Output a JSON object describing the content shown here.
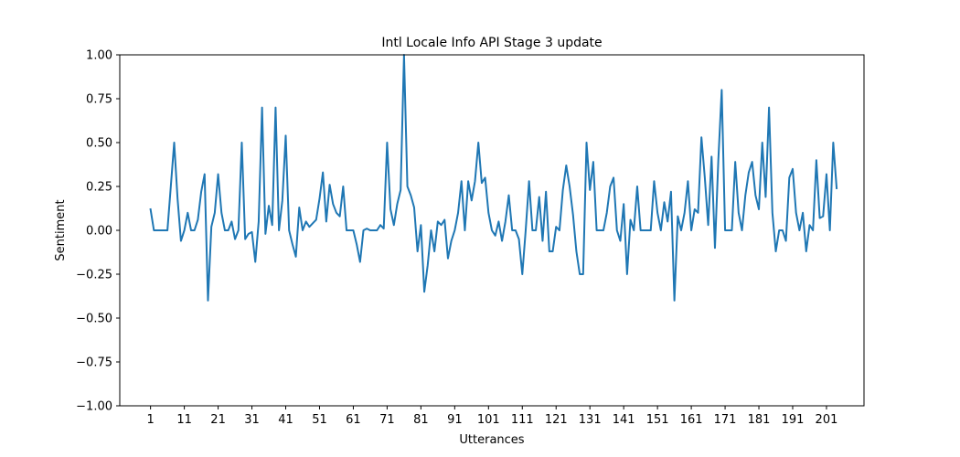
{
  "chart_data": {
    "type": "line",
    "title": "Intl Locale Info API Stage 3 update",
    "xlabel": "Utterances",
    "ylabel": "Sentiment",
    "xlim": [
      -8.1,
      212.1
    ],
    "ylim": [
      -1.0,
      1.0
    ],
    "x_ticks": [
      1,
      11,
      21,
      31,
      41,
      51,
      61,
      71,
      81,
      91,
      101,
      111,
      121,
      131,
      141,
      151,
      161,
      171,
      181,
      191,
      201
    ],
    "y_ticks": [
      -1.0,
      -0.75,
      -0.5,
      -0.25,
      0.0,
      0.25,
      0.5,
      0.75,
      1.0
    ],
    "y_tick_labels": [
      "−1.00",
      "−0.75",
      "−0.50",
      "−0.25",
      "0.00",
      "0.25",
      "0.50",
      "0.75",
      "1.00"
    ],
    "grid": false,
    "color": "#1f77b4",
    "series": [
      {
        "x_start": 1,
        "values": [
          0.12,
          0.0,
          0.0,
          0.0,
          0.0,
          0.0,
          0.25,
          0.5,
          0.18,
          -0.06,
          0.0,
          0.1,
          0.0,
          0.0,
          0.06,
          0.22,
          0.32,
          -0.4,
          0.02,
          0.1,
          0.32,
          0.1,
          0.0,
          0.0,
          0.05,
          -0.05,
          0.0,
          0.5,
          -0.05,
          -0.02,
          -0.01,
          -0.18,
          0.05,
          0.7,
          -0.02,
          0.14,
          0.03,
          0.7,
          0.0,
          0.17,
          0.54,
          0.0,
          -0.08,
          -0.15,
          0.13,
          0.0,
          0.05,
          0.02,
          0.04,
          0.06,
          0.18,
          0.33,
          0.05,
          0.26,
          0.15,
          0.1,
          0.08,
          0.25,
          0.0,
          0.0,
          0.0,
          -0.08,
          -0.18,
          0.0,
          0.01,
          0.0,
          0.0,
          0.0,
          0.03,
          0.01,
          0.5,
          0.12,
          0.03,
          0.15,
          0.23,
          1.0,
          0.25,
          0.2,
          0.13,
          -0.12,
          0.03,
          -0.35,
          -0.2,
          0.0,
          -0.12,
          0.05,
          0.03,
          0.06,
          -0.16,
          -0.06,
          0.0,
          0.1,
          0.28,
          0.0,
          0.28,
          0.17,
          0.28,
          0.5,
          0.27,
          0.3,
          0.1,
          0.0,
          -0.03,
          0.05,
          -0.06,
          0.05,
          0.2,
          0.0,
          0.0,
          -0.05,
          -0.25,
          0.0,
          0.28,
          0.0,
          0.0,
          0.19,
          -0.06,
          0.22,
          -0.12,
          -0.12,
          0.02,
          0.0,
          0.23,
          0.37,
          0.25,
          0.09,
          -0.12,
          -0.25,
          -0.25,
          0.5,
          0.23,
          0.39,
          0.0,
          0.0,
          0.0,
          0.1,
          0.25,
          0.3,
          0.0,
          -0.06,
          0.15,
          -0.25,
          0.06,
          0.0,
          0.25,
          0.0,
          0.0,
          0.0,
          0.0,
          0.28,
          0.1,
          0.0,
          0.16,
          0.05,
          0.22,
          -0.4,
          0.08,
          0.0,
          0.1,
          0.28,
          0.0,
          0.12,
          0.1,
          0.53,
          0.3,
          0.03,
          0.42,
          -0.1,
          0.4,
          0.8,
          0.0,
          0.0,
          0.0,
          0.39,
          0.1,
          0.0,
          0.2,
          0.33,
          0.39,
          0.2,
          0.12,
          0.5,
          0.19,
          0.7,
          0.1,
          -0.12,
          0.0,
          0.0,
          -0.06,
          0.3,
          0.35,
          0.1,
          0.0,
          0.1,
          -0.12,
          0.03,
          0.0,
          0.4,
          0.07,
          0.08,
          0.32,
          0.0,
          0.5,
          0.24
        ]
      }
    ]
  }
}
